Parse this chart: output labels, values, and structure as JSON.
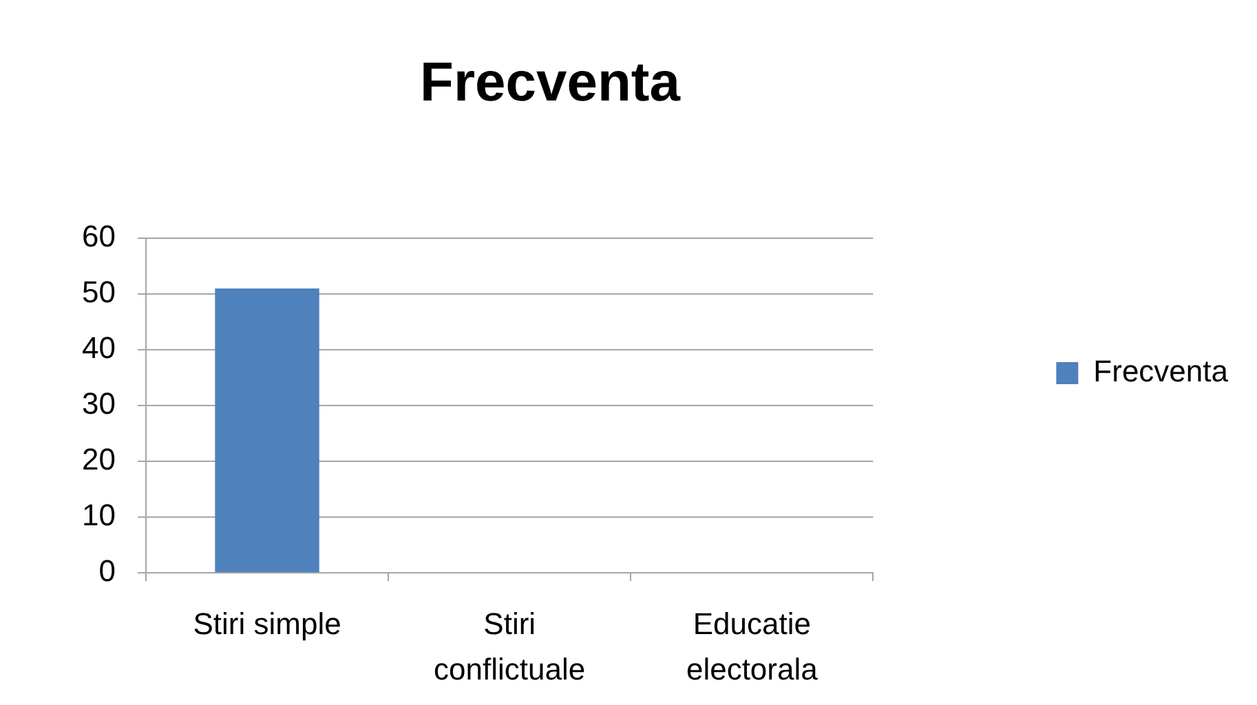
{
  "chart_data": {
    "type": "bar",
    "title": "Frecventa",
    "categories": [
      "Stiri simple",
      "Stiri conflictuale",
      "Educatie electorala"
    ],
    "series": [
      {
        "name": "Frecventa",
        "color": "#4f81bd",
        "values": [
          51,
          0,
          0
        ]
      }
    ],
    "ylim": [
      0,
      60
    ],
    "yticks": [
      0,
      10,
      20,
      30,
      40,
      50,
      60
    ],
    "grid": "y",
    "legend": "right"
  }
}
